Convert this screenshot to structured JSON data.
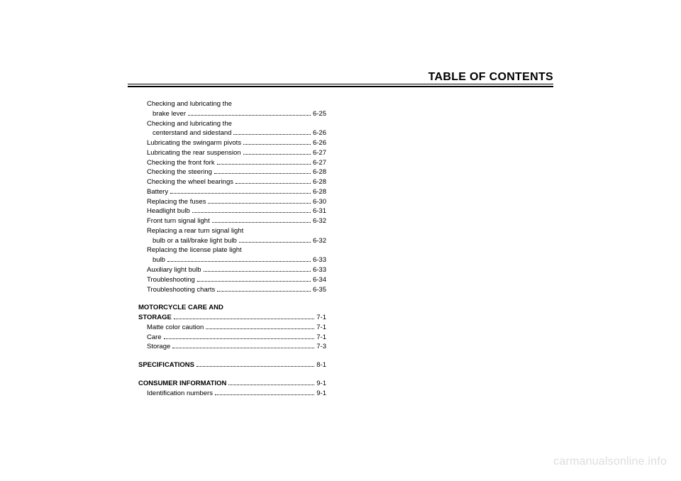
{
  "header": {
    "title": "TABLE OF CONTENTS"
  },
  "entries": [
    {
      "label": "Checking and lubricating the",
      "page": "",
      "indent": 1,
      "cont": true
    },
    {
      "label": "brake lever",
      "page": "6-25",
      "indent": 2
    },
    {
      "label": "Checking and lubricating the",
      "page": "",
      "indent": 1,
      "cont": true
    },
    {
      "label": "centerstand and sidestand",
      "page": "6-26",
      "indent": 2
    },
    {
      "label": "Lubricating the swingarm pivots",
      "page": "6-26",
      "indent": 1
    },
    {
      "label": "Lubricating the rear suspension",
      "page": "6-27",
      "indent": 1
    },
    {
      "label": "Checking the front fork",
      "page": "6-27",
      "indent": 1
    },
    {
      "label": "Checking the steering",
      "page": "6-28",
      "indent": 1
    },
    {
      "label": "Checking the wheel bearings",
      "page": "6-28",
      "indent": 1
    },
    {
      "label": "Battery",
      "page": "6-28",
      "indent": 1
    },
    {
      "label": "Replacing the fuses",
      "page": "6-30",
      "indent": 1
    },
    {
      "label": "Headlight bulb",
      "page": "6-31",
      "indent": 1
    },
    {
      "label": "Front turn signal light",
      "page": "6-32",
      "indent": 1
    },
    {
      "label": "Replacing a rear turn signal light",
      "page": "",
      "indent": 1,
      "cont": true
    },
    {
      "label": "bulb or a tail/brake light bulb",
      "page": "6-32",
      "indent": 2
    },
    {
      "label": "Replacing the license plate light",
      "page": "",
      "indent": 1,
      "cont": true
    },
    {
      "label": "bulb",
      "page": "6-33",
      "indent": 2
    },
    {
      "label": "Auxiliary light bulb",
      "page": "6-33",
      "indent": 1
    },
    {
      "label": "Troubleshooting",
      "page": "6-34",
      "indent": 1
    },
    {
      "label": "Troubleshooting charts",
      "page": "6-35",
      "indent": 1
    }
  ],
  "group1": {
    "head1": "MOTORCYCLE CARE AND",
    "head2_label": "STORAGE",
    "head2_page": "7-1",
    "items": [
      {
        "label": "Matte color caution",
        "page": "7-1"
      },
      {
        "label": "Care",
        "page": "7-1"
      },
      {
        "label": "Storage",
        "page": "7-3"
      }
    ]
  },
  "group2": {
    "label": "SPECIFICATIONS",
    "page": "8-1"
  },
  "group3": {
    "label": "CONSUMER INFORMATION",
    "page": "9-1",
    "items": [
      {
        "label": "Identification numbers",
        "page": "9-1"
      }
    ]
  },
  "watermark": "carmanualsonline.info",
  "style": {
    "page_bg": "#ffffff",
    "text_color": "#000000",
    "watermark_color": "#dddddd",
    "font_size_body": 9.5,
    "font_size_header": 16,
    "rule_thick": 2,
    "rule_thin": 1
  }
}
